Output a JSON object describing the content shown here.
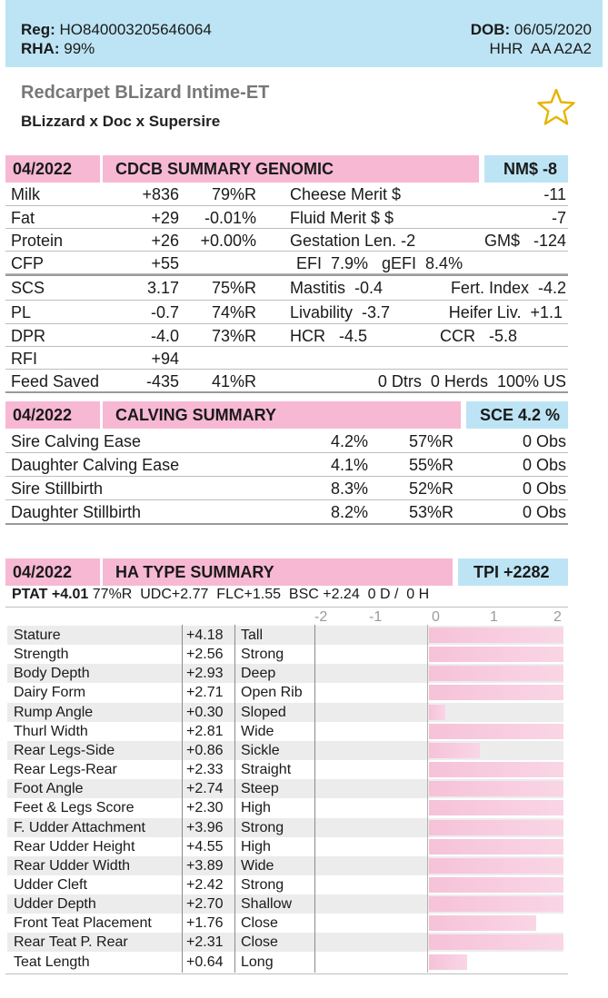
{
  "header": {
    "reg_label": "Reg:",
    "reg_value": "HO840003205646064",
    "rha_label": "RHA:",
    "rha_value": "99%",
    "dob_label": "DOB:",
    "dob_value": "06/05/2020",
    "codes": "HHR  AA A2A2"
  },
  "animal": {
    "name": "Redcarpet BLizard Intime-ET",
    "pedigree": "BLizzard x Doc x Supersire",
    "favorite_icon": "star-outline-icon"
  },
  "genomic": {
    "date": "04/2022",
    "title": "CDCB SUMMARY GENOMIC",
    "badge": "NM$ -8",
    "rows": [
      {
        "label": "Milk",
        "value": "+836",
        "rel": "79%R",
        "right_label": "Cheese Merit $",
        "right_value": "-11"
      },
      {
        "label": "Fat",
        "value": "+29",
        "rel": "-0.01%",
        "right_label": "Fluid Merit $ $",
        "right_value": "-7"
      },
      {
        "label": "Protein",
        "value": "+26",
        "rel": "+0.00%",
        "right_label": "Gestation Len. -2",
        "right_value": "GM$   -124"
      },
      {
        "label": "CFP",
        "value": "+55",
        "rel": "",
        "right_label": "EFI  7.9%   gEFI  8.4%",
        "right_value": ""
      },
      {
        "label": "SCS",
        "value": "3.17",
        "rel": "75%R",
        "right_label": "Mastitis  -0.4",
        "right_value": "Fert. Index  -4.2"
      },
      {
        "label": "PL",
        "value": "-0.7",
        "rel": "74%R",
        "right_label": "Livability  -3.7",
        "right_value": "Heifer Liv.  +1.1"
      },
      {
        "label": "DPR",
        "value": "-4.0",
        "rel": "73%R",
        "right_label": "HCR   -4.5",
        "right_value": "CCR   -5.8"
      },
      {
        "label": "RFI",
        "value": "+94",
        "rel": "",
        "right_label": "",
        "right_value": ""
      },
      {
        "label": "Feed Saved",
        "value": "-435",
        "rel": "41%R",
        "right_label": "",
        "right_value": "0 Dtrs  0 Herds  100% US"
      }
    ]
  },
  "calving": {
    "date": "04/2022",
    "title": "CALVING SUMMARY",
    "badge": "SCE 4.2 %",
    "rows": [
      {
        "label": "Sire Calving Ease",
        "value": "4.2%",
        "rel": "57%R",
        "obs": "0 Obs"
      },
      {
        "label": "Daughter Calving Ease",
        "value": "4.1%",
        "rel": "55%R",
        "obs": "0 Obs"
      },
      {
        "label": "Sire Stillbirth",
        "value": "8.3%",
        "rel": "52%R",
        "obs": "0 Obs"
      },
      {
        "label": "Daughter Stillbirth",
        "value": "8.2%",
        "rel": "53%R",
        "obs": "0 Obs"
      }
    ]
  },
  "type": {
    "date": "04/2022",
    "title": "HA TYPE SUMMARY",
    "badge": "TPI +2282",
    "ptat_label": "PTAT +4.01",
    "ptat_rest": "77%R  UDC+2.77  FLC+1.55  BSC +2.24  0 D /  0 H",
    "scale": [
      "-2",
      "-1",
      "0",
      "1",
      "2"
    ],
    "traits": [
      {
        "name": "Stature",
        "value": "+4.18",
        "desc": "Tall",
        "level": 4.18
      },
      {
        "name": "Strength",
        "value": "+2.56",
        "desc": "Strong",
        "level": 2.56
      },
      {
        "name": "Body Depth",
        "value": "+2.93",
        "desc": "Deep",
        "level": 2.93
      },
      {
        "name": "Dairy Form",
        "value": "+2.71",
        "desc": "Open Rib",
        "level": 2.71
      },
      {
        "name": "Rump Angle",
        "value": "+0.30",
        "desc": "Sloped",
        "level": 0.3
      },
      {
        "name": "Thurl Width",
        "value": "+2.81",
        "desc": "Wide",
        "level": 2.81
      },
      {
        "name": "Rear Legs-Side",
        "value": "+0.86",
        "desc": "Sickle",
        "level": 0.86
      },
      {
        "name": "Rear Legs-Rear",
        "value": "+2.33",
        "desc": "Straight",
        "level": 2.33
      },
      {
        "name": "Foot Angle",
        "value": "+2.74",
        "desc": "Steep",
        "level": 2.74
      },
      {
        "name": "Feet & Legs Score",
        "value": "+2.30",
        "desc": "High",
        "level": 2.3
      },
      {
        "name": "F. Udder Attachment",
        "value": "+3.96",
        "desc": "Strong",
        "level": 3.96
      },
      {
        "name": "Rear Udder Height",
        "value": "+4.55",
        "desc": "High",
        "level": 4.55
      },
      {
        "name": "Rear Udder Width",
        "value": "+3.89",
        "desc": "Wide",
        "level": 3.89
      },
      {
        "name": "Udder Cleft",
        "value": "+2.42",
        "desc": "Strong",
        "level": 2.42
      },
      {
        "name": "Udder Depth",
        "value": "+2.70",
        "desc": "Shallow",
        "level": 2.7
      },
      {
        "name": "Front Teat Placement",
        "value": "+1.76",
        "desc": "Close",
        "level": 1.76
      },
      {
        "name": "Rear Teat P. Rear",
        "value": "+2.31",
        "desc": "Close",
        "level": 2.31
      },
      {
        "name": "Teat Length",
        "value": "+0.64",
        "desc": "Long",
        "level": 0.64
      }
    ]
  },
  "colors": {
    "header_blue": "#bde4f4",
    "section_pink": "#f7b8d3",
    "bar_pink": "#f6c2d8",
    "star_gold": "#e6b400"
  }
}
